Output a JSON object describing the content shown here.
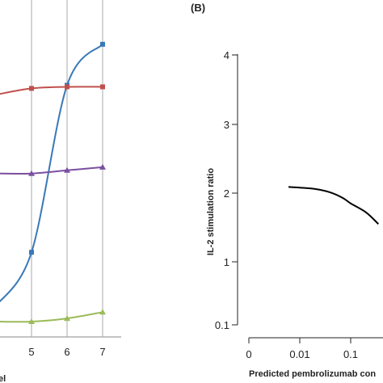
{
  "chart_data": [
    {
      "type": "line",
      "panel_label": "",
      "x": [
        4,
        5,
        6,
        7
      ],
      "x_tick_labels": [
        "4",
        "5",
        "6",
        "7"
      ],
      "xlabel_fragment": "el",
      "grid": "vertical",
      "series": [
        {
          "color": "#3a78b8",
          "marker": "square",
          "values": [
            0.05,
            0.22,
            0.75,
            0.88
          ]
        },
        {
          "color": "#c0504d",
          "marker": "square",
          "values": [
            0.72,
            0.74,
            0.745,
            0.745
          ]
        },
        {
          "color": "#7a4fa0",
          "marker": "triangle",
          "values": [
            0.47,
            0.47,
            0.48,
            0.49
          ]
        },
        {
          "color": "#9bbb59",
          "marker": "triangle",
          "values": [
            0.0,
            0.0,
            0.01,
            0.03
          ]
        }
      ]
    },
    {
      "type": "line",
      "panel_label": "(B)",
      "ylabel": "IL-2 stimulation ratio",
      "xlabel": "Predicted pembrolizumab  con",
      "x_tick_labels": [
        "0",
        "0.01",
        "0.1"
      ],
      "y_ticks": [
        0.1,
        1,
        2,
        3,
        4
      ],
      "y_tick_labels": [
        "0.1",
        "1",
        "2",
        "3",
        "4"
      ],
      "series": [
        {
          "color": "#000000",
          "x": [
            0.006,
            0.01,
            0.02,
            0.04,
            0.07,
            0.1,
            0.2,
            0.35
          ],
          "y": [
            2.09,
            2.08,
            2.06,
            2.01,
            1.93,
            1.85,
            1.72,
            1.55
          ]
        }
      ]
    }
  ]
}
